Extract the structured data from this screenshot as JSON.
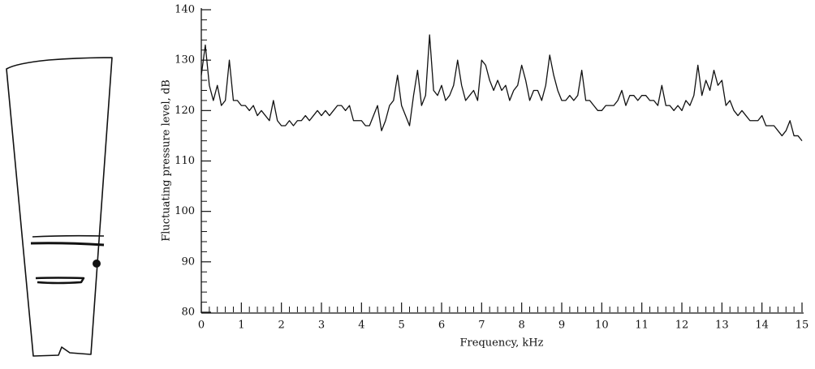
{
  "chart_data": {
    "type": "line",
    "x_label": "Frequency, kHz",
    "y_label": "Fluctuating pressure level, dB",
    "x": [
      0,
      0.1,
      0.2,
      0.3,
      0.4,
      0.5,
      0.6,
      0.7,
      0.8,
      0.9,
      1,
      1.1,
      1.2,
      1.3,
      1.4,
      1.5,
      1.6,
      1.7,
      1.8,
      1.9,
      2,
      2.1,
      2.2,
      2.3,
      2.4,
      2.5,
      2.6,
      2.7,
      2.8,
      2.9,
      3,
      3.1,
      3.2,
      3.3,
      3.4,
      3.5,
      3.6,
      3.7,
      3.8,
      3.9,
      4,
      4.1,
      4.2,
      4.3,
      4.4,
      4.5,
      4.6,
      4.7,
      4.8,
      4.9,
      5,
      5.1,
      5.2,
      5.3,
      5.4,
      5.5,
      5.6,
      5.7,
      5.8,
      5.9,
      6,
      6.1,
      6.2,
      6.3,
      6.4,
      6.5,
      6.6,
      6.7,
      6.8,
      6.9,
      7,
      7.1,
      7.2,
      7.3,
      7.4,
      7.5,
      7.6,
      7.7,
      7.8,
      7.9,
      8,
      8.1,
      8.2,
      8.3,
      8.4,
      8.5,
      8.6,
      8.7,
      8.8,
      8.9,
      9,
      9.1,
      9.2,
      9.3,
      9.4,
      9.5,
      9.6,
      9.7,
      9.8,
      9.9,
      10,
      10.1,
      10.2,
      10.3,
      10.4,
      10.5,
      10.6,
      10.7,
      10.8,
      10.9,
      11,
      11.1,
      11.2,
      11.3,
      11.4,
      11.5,
      11.6,
      11.7,
      11.8,
      11.9,
      12,
      12.1,
      12.2,
      12.3,
      12.4,
      12.5,
      12.6,
      12.7,
      12.8,
      12.9,
      13,
      13.1,
      13.2,
      13.3,
      13.4,
      13.5,
      13.6,
      13.7,
      13.8,
      13.9,
      14,
      14.1,
      14.2,
      14.3,
      14.4,
      14.5,
      14.6,
      14.7,
      14.8,
      14.9,
      15
    ],
    "series": [
      {
        "color": "#111111",
        "values": [
          127,
          133,
          125,
          122,
          125,
          121,
          122,
          130,
          122,
          122,
          121,
          121,
          120,
          121,
          119,
          120,
          119,
          118,
          122,
          118,
          117,
          117,
          118,
          117,
          118,
          118,
          119,
          118,
          119,
          120,
          119,
          120,
          119,
          120,
          121,
          121,
          120,
          121,
          118,
          118,
          118,
          117,
          117,
          119,
          121,
          116,
          118,
          121,
          122,
          127,
          121,
          119,
          117,
          123,
          128,
          121,
          123,
          135,
          124,
          123,
          125,
          122,
          123,
          125,
          130,
          125,
          122,
          123,
          124,
          122,
          130,
          129,
          126,
          124,
          126,
          124,
          125,
          122,
          124,
          125,
          129,
          126,
          122,
          124,
          124,
          122,
          125,
          131,
          127,
          124,
          122,
          122,
          123,
          122,
          123,
          128,
          122,
          122,
          121,
          120,
          120,
          121,
          121,
          121,
          122,
          124,
          121,
          123,
          123,
          122,
          123,
          123,
          122,
          122,
          121,
          125,
          121,
          121,
          120,
          121,
          120,
          122,
          121,
          123,
          129,
          123,
          126,
          124,
          128,
          125,
          126,
          121,
          122,
          120,
          119,
          120,
          119,
          118,
          118,
          118,
          119,
          117,
          117,
          117,
          116,
          115,
          116,
          118,
          115,
          115,
          114
        ]
      }
    ],
    "xlim": [
      0,
      15
    ],
    "xticks": [
      0,
      1,
      2,
      3,
      4,
      5,
      6,
      7,
      8,
      9,
      10,
      11,
      12,
      13,
      14,
      15
    ],
    "ylim": [
      80,
      140
    ],
    "yticks": [
      80,
      90,
      100,
      110,
      120,
      130,
      140
    ]
  }
}
